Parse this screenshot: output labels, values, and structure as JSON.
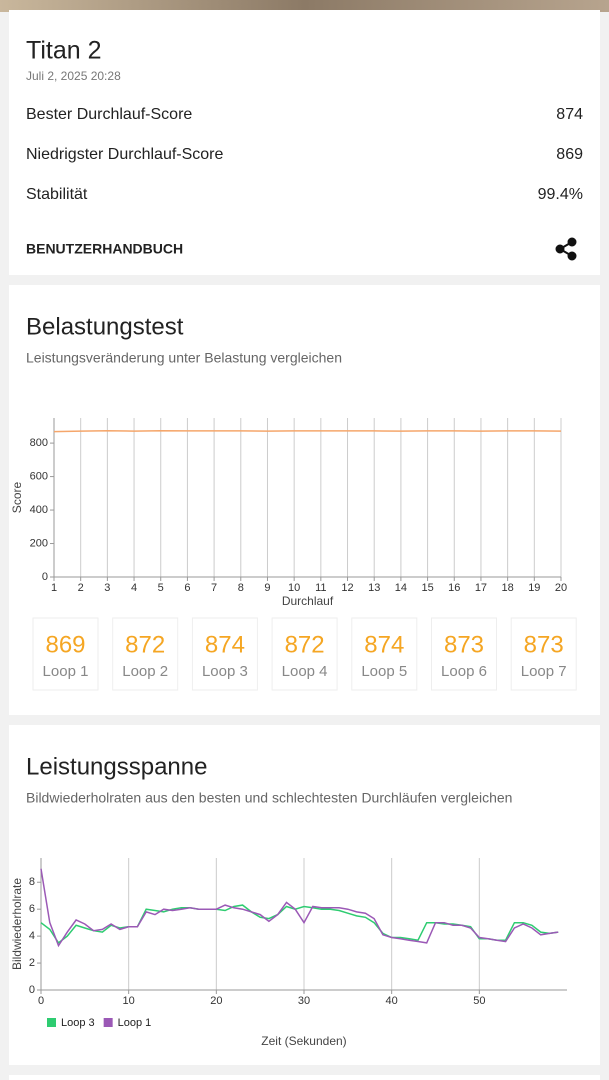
{
  "header": {
    "title": "Titan 2",
    "date": "Juli 2, 2025 20:28"
  },
  "stats": [
    {
      "label": "Bester Durchlauf-Score",
      "value": "874"
    },
    {
      "label": "Niedrigster Durchlauf-Score",
      "value": "869"
    },
    {
      "label": "Stabilität",
      "value": "99.4%"
    }
  ],
  "manual": "BENUTZERHANDBUCH",
  "loops": [
    {
      "value": 869,
      "label": "Loop 1"
    },
    {
      "value": 872,
      "label": "Loop 2"
    },
    {
      "value": 874,
      "label": "Loop 3"
    },
    {
      "value": 872,
      "label": "Loop 4"
    },
    {
      "value": 874,
      "label": "Loop 5"
    },
    {
      "value": 873,
      "label": "Loop 6"
    },
    {
      "value": 873,
      "label": "Loop 7"
    }
  ],
  "chart_data": [
    {
      "type": "line",
      "title": "Belastungstest",
      "subtitle": "Leistungsveränderung unter Belastung vergleichen",
      "x_label": "Durchlauf",
      "y_label": "Score",
      "x": [
        1,
        2,
        3,
        4,
        5,
        6,
        7,
        8,
        9,
        10,
        11,
        12,
        13,
        14,
        15,
        16,
        17,
        18,
        19,
        20
      ],
      "values": [
        869,
        872,
        874,
        872,
        874,
        873,
        873,
        873,
        872,
        873,
        873,
        873,
        873,
        872,
        873,
        873,
        872,
        873,
        873,
        872
      ],
      "color": "#f5a66b",
      "xlim": [
        1,
        20
      ],
      "xticks": [
        1,
        2,
        3,
        4,
        5,
        6,
        7,
        8,
        9,
        10,
        11,
        12,
        13,
        14,
        15,
        16,
        17,
        18,
        19,
        20
      ],
      "ylim": [
        0,
        950
      ],
      "yticks": [
        0,
        200,
        400,
        600,
        800
      ],
      "grid": "x"
    },
    {
      "type": "line",
      "title": "Leistungsspanne",
      "subtitle": "Bildwiederholraten aus den besten und schlechtesten Durchläufen vergleichen",
      "x_label": "Zeit (Sekunden)",
      "y_label": "Bildwiederholrate",
      "x": [
        0,
        1,
        2,
        3,
        4,
        5,
        6,
        7,
        8,
        9,
        10,
        11,
        12,
        13,
        14,
        15,
        16,
        17,
        18,
        19,
        20,
        21,
        22,
        23,
        24,
        25,
        26,
        27,
        28,
        29,
        30,
        31,
        32,
        33,
        34,
        35,
        36,
        37,
        38,
        39,
        40,
        41,
        42,
        43,
        44,
        45,
        46,
        47,
        48,
        49,
        50,
        51,
        52,
        53,
        54,
        55,
        56,
        57,
        58,
        59
      ],
      "series": [
        {
          "name": "Loop 3",
          "color": "#2ecc71",
          "values": [
            5.0,
            4.5,
            3.5,
            4.0,
            4.8,
            4.6,
            4.4,
            4.3,
            4.8,
            4.6,
            4.7,
            4.7,
            6.0,
            5.9,
            5.8,
            6.0,
            6.1,
            6.1,
            6.0,
            6.0,
            6.0,
            5.9,
            6.2,
            6.3,
            5.8,
            5.4,
            5.3,
            5.6,
            6.2,
            6.0,
            6.2,
            6.1,
            6.0,
            6.0,
            5.9,
            5.7,
            5.5,
            5.4,
            5.0,
            4.2,
            3.9,
            3.9,
            3.8,
            3.7,
            5.0,
            5.0,
            4.9,
            4.9,
            4.8,
            4.7,
            3.8,
            3.8,
            3.7,
            3.7,
            5.0,
            5.0,
            4.8,
            4.3,
            4.2,
            4.3
          ]
        },
        {
          "name": "Loop 1",
          "color": "#9b59b6",
          "values": [
            9.0,
            5.0,
            3.3,
            4.3,
            5.2,
            4.9,
            4.4,
            4.5,
            4.9,
            4.5,
            4.7,
            4.7,
            5.8,
            5.6,
            6.0,
            5.9,
            6.0,
            6.1,
            6.0,
            6.0,
            6.0,
            6.3,
            6.1,
            6.0,
            5.8,
            5.6,
            5.1,
            5.6,
            6.5,
            6.0,
            5.0,
            6.2,
            6.1,
            6.1,
            6.1,
            6.0,
            5.8,
            5.7,
            5.3,
            4.1,
            3.9,
            3.8,
            3.7,
            3.6,
            3.5,
            5.0,
            5.0,
            4.8,
            4.8,
            4.6,
            3.9,
            3.8,
            3.7,
            3.6,
            4.6,
            4.9,
            4.6,
            4.1,
            4.2,
            4.3
          ]
        }
      ],
      "xlim": [
        0,
        60
      ],
      "xticks": [
        0,
        10,
        20,
        30,
        40,
        50
      ],
      "ylim": [
        0,
        9.8
      ],
      "yticks": [
        0,
        2,
        4,
        6,
        8
      ],
      "grid": "x",
      "legend": "bottom left"
    }
  ]
}
